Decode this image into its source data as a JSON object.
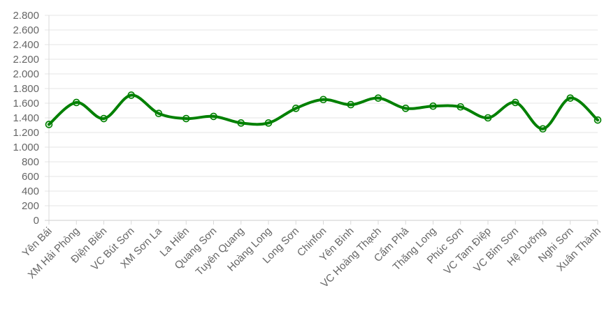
{
  "chart_data": {
    "type": "line",
    "title": "",
    "xlabel": "",
    "ylabel": "",
    "ylim": [
      0,
      2800
    ],
    "y_ticks": [
      0,
      200,
      400,
      600,
      800,
      1000,
      1200,
      1400,
      1600,
      1800,
      2000,
      2200,
      2400,
      2600,
      2800
    ],
    "y_tick_labels": [
      "0",
      "200",
      "400",
      "600",
      "800",
      "1.000",
      "1.200",
      "1.400",
      "1.600",
      "1.800",
      "2.000",
      "2.200",
      "2.400",
      "2.600",
      "2.800"
    ],
    "grid": true,
    "legend": "none",
    "categories": [
      "Yên Bái",
      "XM Hải Phòng",
      "Điện Biên",
      "VC Bút Sơn",
      "XM Sơn La",
      "La Hiên",
      "Quang Sơn",
      "Tuyên Quang",
      "Hoàng Long",
      "Long Sơn",
      "Chinfon",
      "Yên Bình",
      "VC Hoàng Thạch",
      "Cẩm Phả",
      "Thăng Long",
      "Phúc Sơn",
      "VC Tam Điệp",
      "VC Bỉm Sơn",
      "Hệ Dưỡng",
      "Nghi Sơn",
      "Xuân Thành"
    ],
    "series": [
      {
        "color": "#008000",
        "values": [
          1310,
          1610,
          1390,
          1710,
          1460,
          1390,
          1420,
          1330,
          1330,
          1530,
          1650,
          1580,
          1670,
          1530,
          1560,
          1550,
          1400,
          1610,
          1250,
          1670,
          1370
        ]
      }
    ]
  }
}
